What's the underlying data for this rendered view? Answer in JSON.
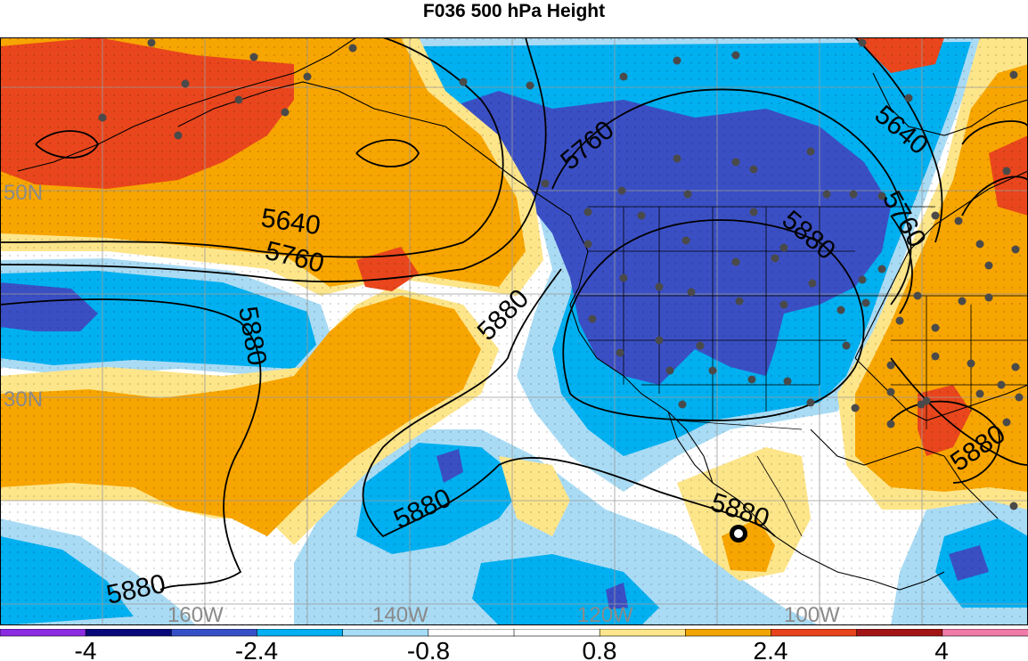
{
  "title": "F036 500 hPa Height",
  "map": {
    "latitude_labels": [
      "50N",
      "30N"
    ],
    "longitude_labels": [
      "160W",
      "140W",
      "120W",
      "100W"
    ],
    "contours": [
      {
        "label": "5640"
      },
      {
        "label": "5760"
      },
      {
        "label": "5880"
      }
    ],
    "contour_labels": [
      "5640",
      "5760",
      "5880",
      "5760",
      "5880",
      "5880",
      "5880",
      "5880",
      "5640",
      "5760",
      "5880",
      "5880"
    ]
  },
  "colorbar": {
    "colors": [
      "#8b2be2",
      "#08087a",
      "#3651c8",
      "#00b0f0",
      "#a6dcf5",
      "#ffffff",
      "#ffffff",
      "#fde68b",
      "#f2a500",
      "#e8431c",
      "#a31515",
      "#f07aa8"
    ],
    "tick_labels": [
      "-4",
      "-2.4",
      "-0.8",
      "0.8",
      "2.4",
      "4"
    ]
  },
  "palette": {
    "strong_negative": "#3b4fc4",
    "negative": "#00b0f0",
    "weak_negative": "#a9dbf4",
    "weak_positive": "#fde58a",
    "positive": "#f7a500",
    "strong_positive": "#e9461d",
    "land_line": "#000000"
  }
}
